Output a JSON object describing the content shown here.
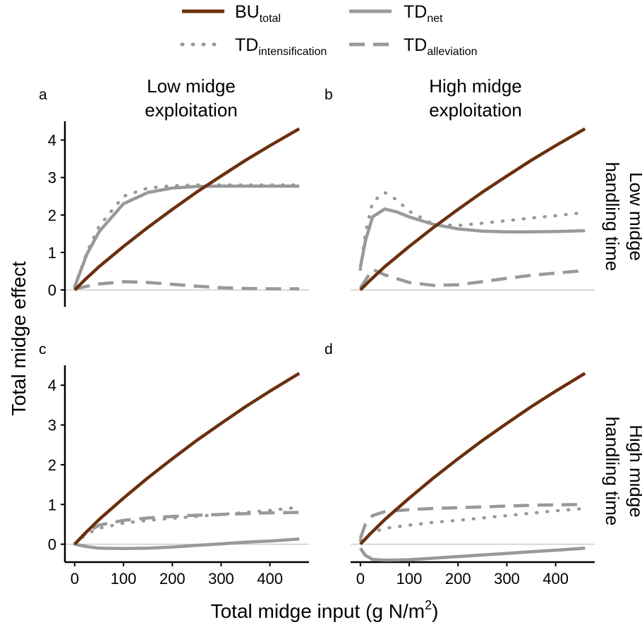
{
  "figure": {
    "xlabel": "Total midge input (g N/m",
    "xlabel_sup": "2",
    "xlabel_end": ")",
    "ylabel": "Total midge effect",
    "column_titles": [
      [
        "Low midge",
        "exploitation"
      ],
      [
        "High midge",
        "exploitation"
      ]
    ],
    "row_titles": [
      [
        "Low midge",
        "handling time"
      ],
      [
        "High midge",
        "handling time"
      ]
    ],
    "panel_letters": [
      "a",
      "b",
      "c",
      "d"
    ]
  },
  "legend": [
    {
      "base": "BU",
      "sub": "total",
      "style": "solid",
      "color": "#6b2f0e"
    },
    {
      "base": "TD",
      "sub": "net",
      "style": "solid",
      "color": "#999999"
    },
    {
      "base": "TD",
      "sub": "intensification",
      "style": "dotted",
      "color": "#999999"
    },
    {
      "base": "TD",
      "sub": "alleviation",
      "style": "dashed",
      "color": "#999999"
    }
  ],
  "chart_data": {
    "type": "line",
    "xlim": [
      -20,
      480
    ],
    "ylim": [
      -0.45,
      4.5
    ],
    "x_ticks": [
      0,
      100,
      200,
      300,
      400
    ],
    "y_ticks": [
      0,
      1,
      2,
      3,
      4
    ],
    "reference_line_y": 0,
    "colors": {
      "bu": "#6b2f0e",
      "td": "#999999",
      "zero": "#cccccc"
    },
    "panels": [
      {
        "letter": "a",
        "series": [
          {
            "name": "BU_total",
            "style": "solid",
            "x": [
              0,
              20,
              50,
              100,
              150,
              200,
              250,
              300,
              350,
              400,
              460
            ],
            "y": [
              0,
              0.26,
              0.62,
              1.16,
              1.67,
              2.15,
              2.61,
              3.04,
              3.46,
              3.85,
              4.3
            ]
          },
          {
            "name": "TD_net",
            "style": "solid",
            "x": [
              0,
              25,
              50,
              100,
              150,
              200,
              250,
              300,
              350,
              400,
              460
            ],
            "y": [
              0.08,
              0.95,
              1.55,
              2.3,
              2.6,
              2.72,
              2.76,
              2.77,
              2.77,
              2.77,
              2.77
            ]
          },
          {
            "name": "TD_intensification",
            "style": "dotted",
            "x": [
              0,
              25,
              50,
              100,
              150,
              200,
              250,
              300,
              350,
              400,
              460
            ],
            "y": [
              0.08,
              1.0,
              1.7,
              2.5,
              2.72,
              2.78,
              2.8,
              2.8,
              2.8,
              2.8,
              2.8
            ]
          },
          {
            "name": "TD_alleviation",
            "style": "dashed",
            "x": [
              0,
              25,
              50,
              100,
              150,
              200,
              250,
              300,
              350,
              400,
              460
            ],
            "y": [
              0.02,
              0.1,
              0.16,
              0.22,
              0.2,
              0.15,
              0.1,
              0.06,
              0.04,
              0.03,
              0.03
            ]
          }
        ]
      },
      {
        "letter": "b",
        "series": [
          {
            "name": "BU_total",
            "style": "solid",
            "x": [
              0,
              20,
              50,
              100,
              150,
              200,
              250,
              300,
              350,
              400,
              460
            ],
            "y": [
              0,
              0.26,
              0.62,
              1.16,
              1.67,
              2.15,
              2.61,
              3.04,
              3.46,
              3.85,
              4.3
            ]
          },
          {
            "name": "TD_net",
            "style": "solid",
            "x": [
              0,
              10,
              25,
              50,
              75,
              100,
              150,
              200,
              250,
              300,
              350,
              400,
              460
            ],
            "y": [
              0.6,
              1.3,
              1.95,
              2.16,
              2.08,
              1.95,
              1.75,
              1.63,
              1.57,
              1.55,
              1.55,
              1.56,
              1.58
            ]
          },
          {
            "name": "TD_intensification",
            "style": "dotted",
            "x": [
              0,
              10,
              25,
              50,
              75,
              100,
              150,
              200,
              250,
              300,
              350,
              400,
              460
            ],
            "y": [
              0.55,
              1.5,
              2.35,
              2.6,
              2.4,
              2.1,
              1.75,
              1.72,
              1.78,
              1.85,
              1.92,
              1.98,
              2.07
            ]
          },
          {
            "name": "TD_alleviation",
            "style": "dashed",
            "x": [
              0,
              25,
              50,
              100,
              150,
              200,
              250,
              300,
              350,
              400,
              460
            ],
            "y": [
              0.05,
              0.55,
              0.4,
              0.2,
              0.12,
              0.14,
              0.22,
              0.31,
              0.39,
              0.45,
              0.52
            ]
          }
        ]
      },
      {
        "letter": "c",
        "series": [
          {
            "name": "BU_total",
            "style": "solid",
            "x": [
              0,
              20,
              50,
              100,
              150,
              200,
              250,
              300,
              350,
              400,
              460
            ],
            "y": [
              0,
              0.26,
              0.62,
              1.16,
              1.67,
              2.15,
              2.61,
              3.04,
              3.46,
              3.85,
              4.3
            ]
          },
          {
            "name": "TD_net",
            "style": "solid",
            "x": [
              0,
              25,
              50,
              100,
              150,
              200,
              250,
              300,
              350,
              400,
              460
            ],
            "y": [
              0,
              -0.06,
              -0.1,
              -0.11,
              -0.1,
              -0.07,
              -0.03,
              0.01,
              0.05,
              0.08,
              0.13
            ]
          },
          {
            "name": "TD_intensification",
            "style": "dotted",
            "x": [
              0,
              25,
              50,
              100,
              150,
              200,
              250,
              300,
              350,
              400,
              460
            ],
            "y": [
              0,
              0.26,
              0.4,
              0.53,
              0.6,
              0.65,
              0.7,
              0.75,
              0.8,
              0.85,
              0.93
            ]
          },
          {
            "name": "TD_alleviation",
            "style": "dashed",
            "x": [
              0,
              25,
              50,
              100,
              150,
              200,
              250,
              300,
              350,
              400,
              460
            ],
            "y": [
              0,
              0.3,
              0.48,
              0.6,
              0.66,
              0.7,
              0.73,
              0.75,
              0.77,
              0.79,
              0.8
            ]
          }
        ]
      },
      {
        "letter": "d",
        "series": [
          {
            "name": "BU_total",
            "style": "solid",
            "x": [
              0,
              20,
              50,
              100,
              150,
              200,
              250,
              300,
              350,
              400,
              460
            ],
            "y": [
              0,
              0.26,
              0.62,
              1.16,
              1.67,
              2.15,
              2.61,
              3.04,
              3.46,
              3.85,
              4.3
            ]
          },
          {
            "name": "TD_net",
            "style": "solid",
            "x": [
              0,
              10,
              25,
              50,
              100,
              150,
              200,
              250,
              300,
              350,
              400,
              460
            ],
            "y": [
              -0.1,
              -0.28,
              -0.38,
              -0.4,
              -0.39,
              -0.35,
              -0.31,
              -0.27,
              -0.23,
              -0.19,
              -0.15,
              -0.1
            ]
          },
          {
            "name": "TD_intensification",
            "style": "dotted",
            "x": [
              0,
              25,
              50,
              100,
              150,
              200,
              250,
              300,
              350,
              400,
              460
            ],
            "y": [
              0.1,
              0.3,
              0.4,
              0.48,
              0.55,
              0.6,
              0.66,
              0.72,
              0.78,
              0.84,
              0.9
            ]
          },
          {
            "name": "TD_alleviation",
            "style": "dashed",
            "x": [
              0,
              10,
              25,
              50,
              100,
              150,
              200,
              250,
              300,
              350,
              400,
              460
            ],
            "y": [
              0.15,
              0.5,
              0.72,
              0.82,
              0.87,
              0.9,
              0.92,
              0.94,
              0.96,
              0.98,
              0.99,
              1.0
            ]
          }
        ]
      }
    ]
  }
}
